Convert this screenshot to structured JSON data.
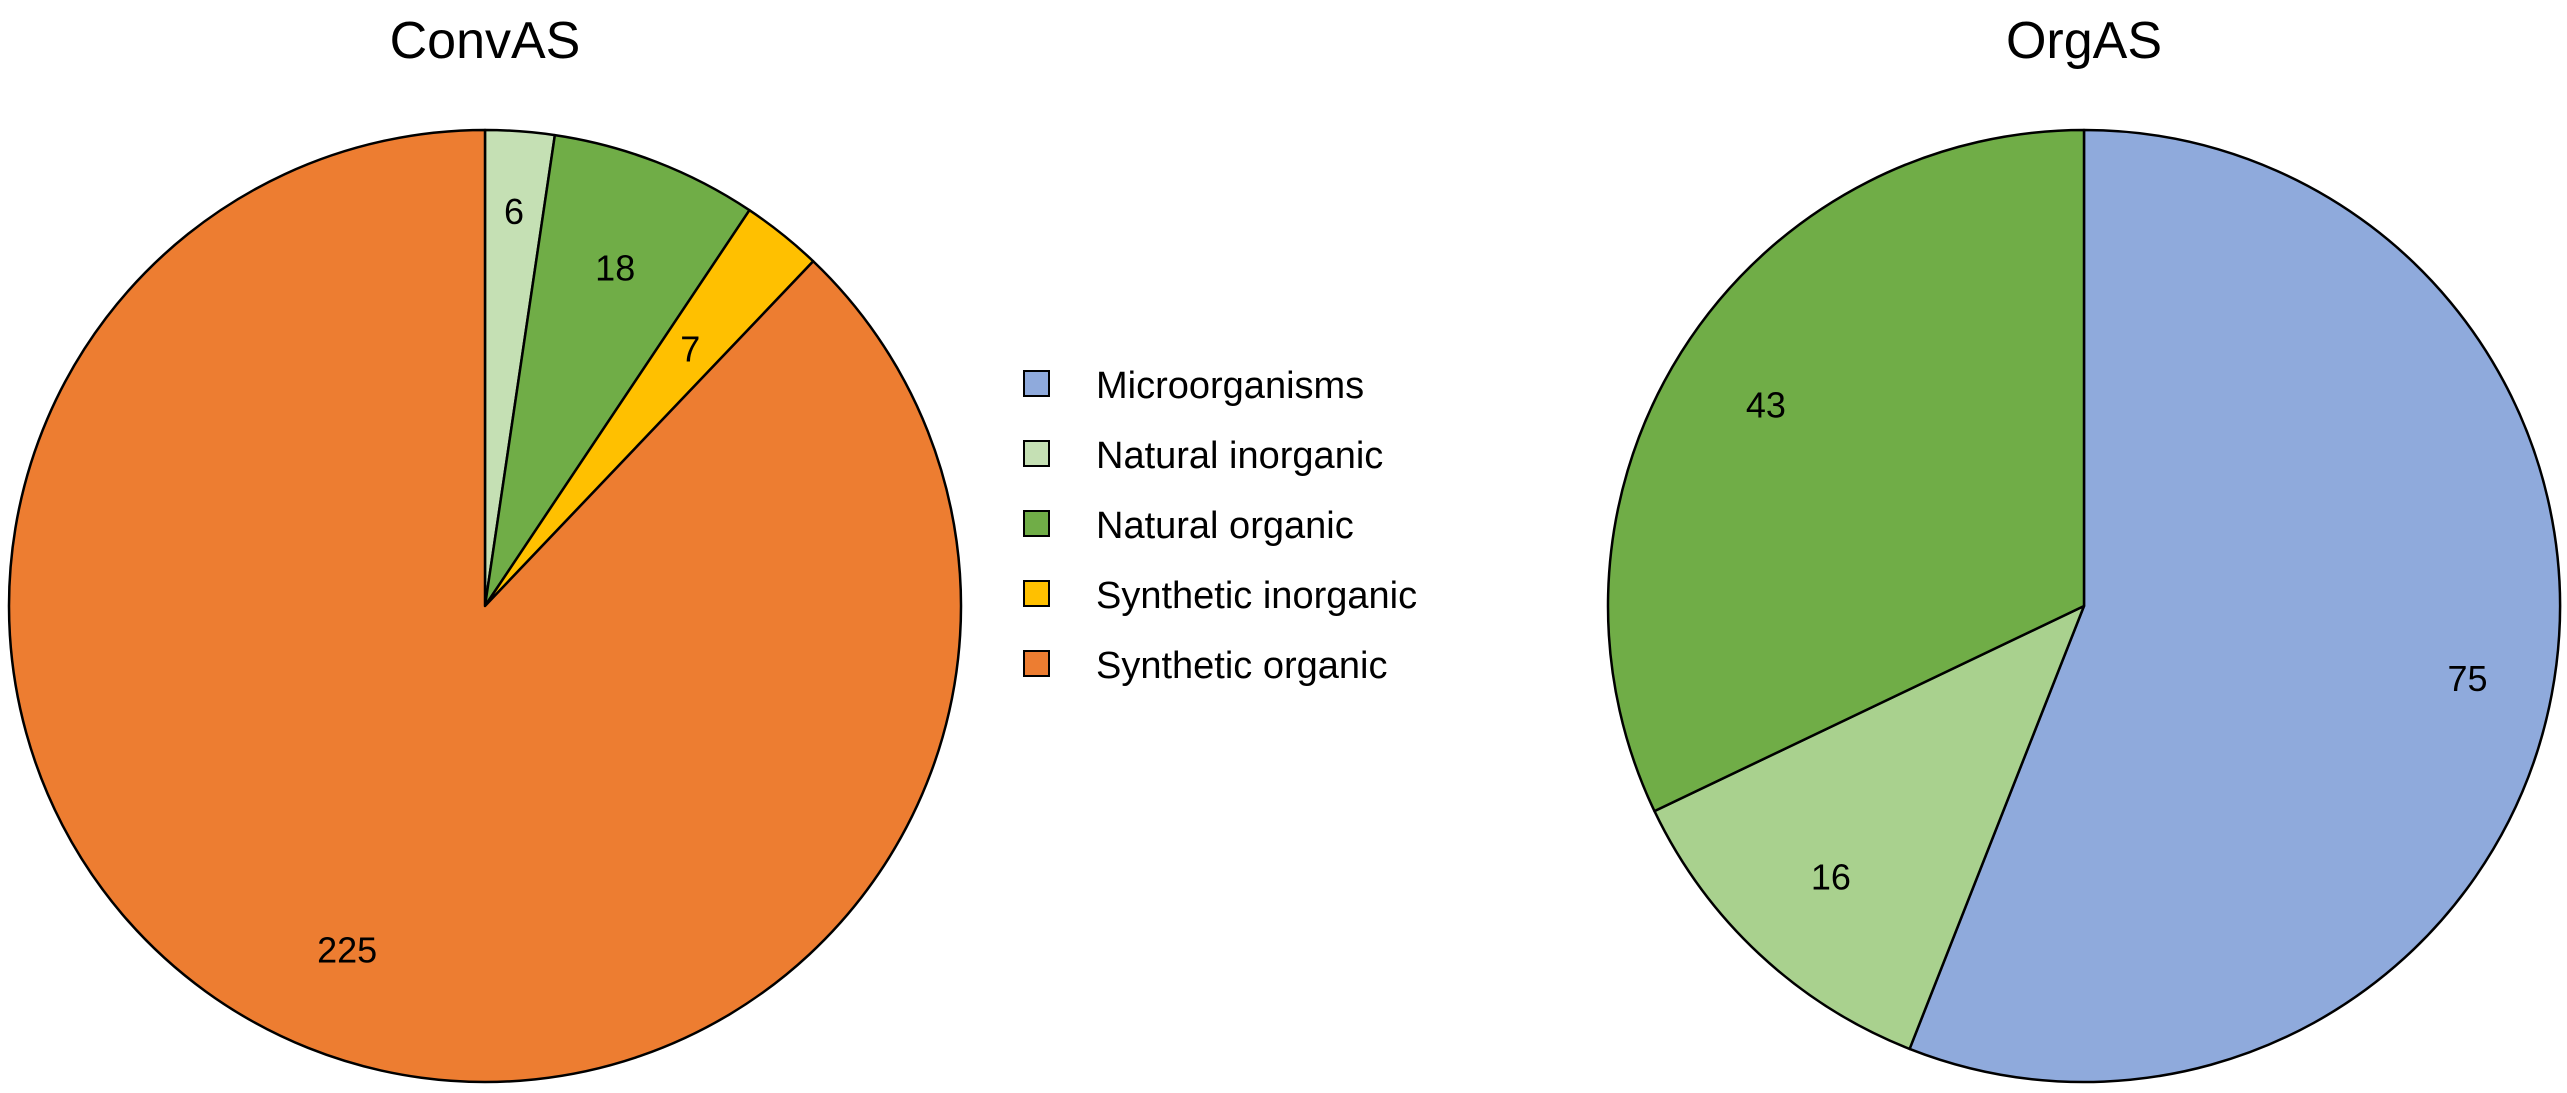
{
  "legend": [
    {
      "label": "Microorganisms",
      "color": "#8faadc"
    },
    {
      "label": "Natural inorganic",
      "color": "#c5e0b4"
    },
    {
      "label": "Natural organic",
      "color": "#70ad47"
    },
    {
      "label": "Synthetic inorganic",
      "color": "#ffc000"
    },
    {
      "label": "Synthetic organic",
      "color": "#ed7d31"
    }
  ],
  "chart_data": [
    {
      "type": "pie",
      "title": "ConvAS",
      "start": "12 o'clock",
      "direction": "clockwise",
      "slices": [
        {
          "category": "Natural inorganic",
          "value": 6,
          "label": "6",
          "color": "#c5e0b4"
        },
        {
          "category": "Natural organic",
          "value": 18,
          "label": "18",
          "color": "#70ad47"
        },
        {
          "category": "Synthetic inorganic",
          "value": 7,
          "label": "7",
          "color": "#ffc000"
        },
        {
          "category": "Synthetic organic",
          "value": 225,
          "label": "225",
          "color": "#ed7d31"
        }
      ]
    },
    {
      "type": "pie",
      "title": "OrgAS",
      "start": "12 o'clock",
      "direction": "clockwise",
      "slices": [
        {
          "category": "Microorganisms",
          "value": 75,
          "label": "75",
          "color": "#8faadc"
        },
        {
          "category": "Natural inorganic",
          "value": 16,
          "label": "16",
          "color": "#a9d18e"
        },
        {
          "category": "Natural organic",
          "value": 43,
          "label": "43",
          "color": "#70ad47"
        }
      ]
    }
  ]
}
